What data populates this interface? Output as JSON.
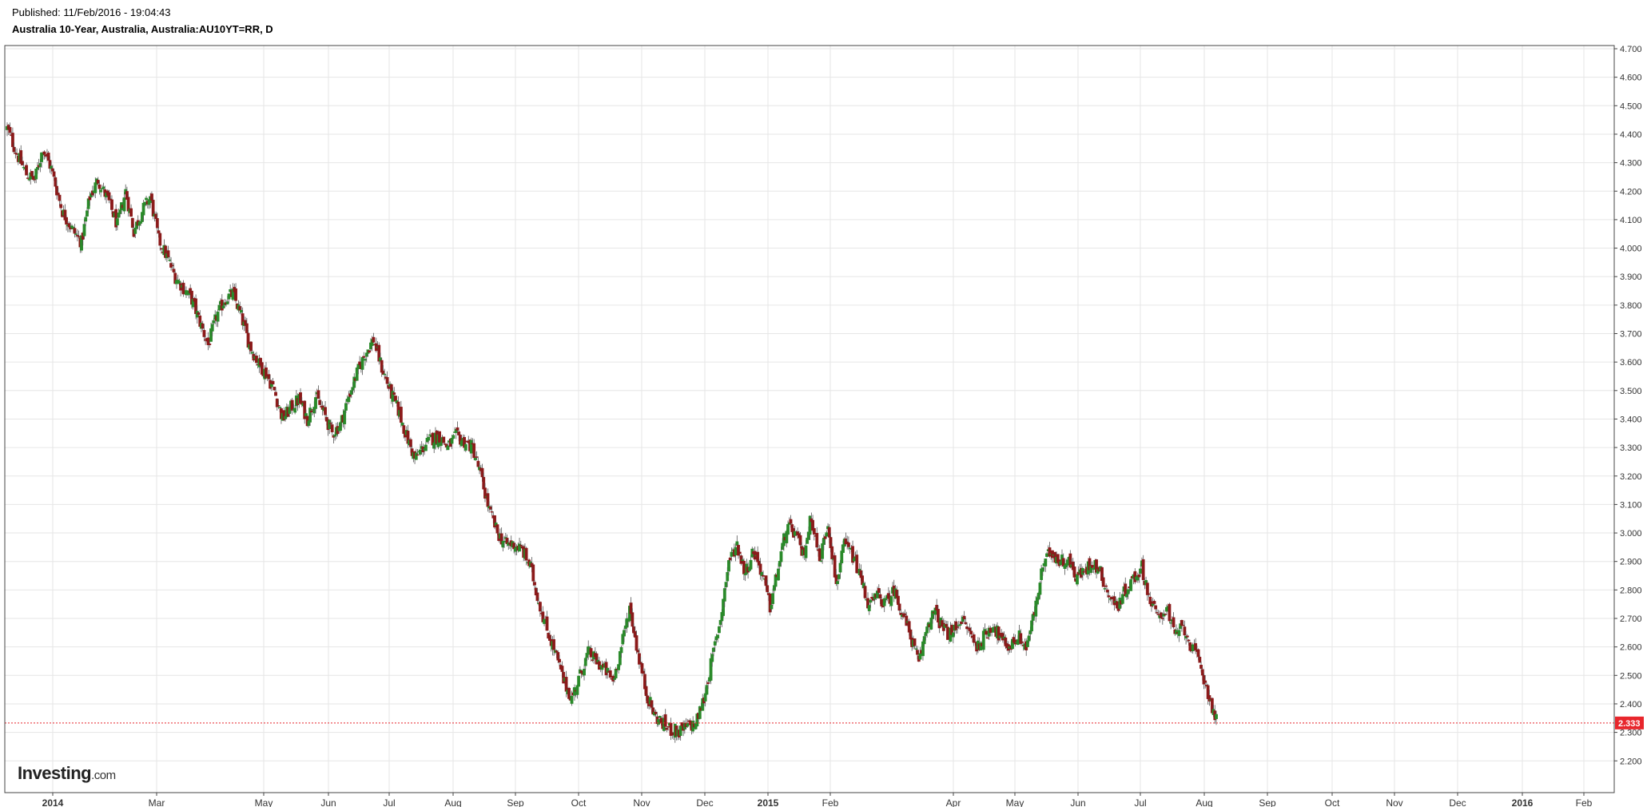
{
  "header": {
    "published": "Published: 11/Feb/2016 - 19:04:43",
    "title": "Australia 10-Year, Australia, Australia:AU10YT=RR, D"
  },
  "brand": {
    "name": "Investing",
    "suffix": ".com"
  },
  "colors": {
    "up": "#2a8a2a",
    "down": "#8b1a1a",
    "grid": "#e6e6e6",
    "last_price_line": "#e8262c",
    "last_price_bg": "#e8262c"
  },
  "chart_data": {
    "type": "candlestick",
    "title": "Australia 10-Year, Australia, Australia:AU10YT=RR, D",
    "ylim": [
      2.15,
      4.7
    ],
    "y_ticks": [
      "4.700",
      "4.600",
      "4.500",
      "4.400",
      "4.300",
      "4.200",
      "4.100",
      "4.000",
      "3.900",
      "3.800",
      "3.700",
      "3.600",
      "3.500",
      "3.400",
      "3.300",
      "3.200",
      "3.100",
      "3.000",
      "2.900",
      "2.800",
      "2.700",
      "2.600",
      "2.500",
      "2.400",
      "2.300",
      "2.200"
    ],
    "x_ticks": [
      {
        "label": "2014",
        "bold": true
      },
      {
        "label": "Mar",
        "bold": false
      },
      {
        "label": "May",
        "bold": false
      },
      {
        "label": "Jun",
        "bold": false
      },
      {
        "label": "Jul",
        "bold": false
      },
      {
        "label": "Aug",
        "bold": false
      },
      {
        "label": "Sep",
        "bold": false
      },
      {
        "label": "Oct",
        "bold": false
      },
      {
        "label": "Nov",
        "bold": false
      },
      {
        "label": "Dec",
        "bold": false
      },
      {
        "label": "2015",
        "bold": true
      },
      {
        "label": "Feb",
        "bold": false
      },
      {
        "label": "Apr",
        "bold": false
      },
      {
        "label": "May",
        "bold": false
      },
      {
        "label": "Jun",
        "bold": false
      },
      {
        "label": "Jul",
        "bold": false
      },
      {
        "label": "Aug",
        "bold": false
      },
      {
        "label": "Sep",
        "bold": false
      },
      {
        "label": "Oct",
        "bold": false
      },
      {
        "label": "Nov",
        "bold": false
      },
      {
        "label": "Dec",
        "bold": false
      },
      {
        "label": "2016",
        "bold": true
      },
      {
        "label": "Feb",
        "bold": false
      }
    ],
    "grid": true,
    "last_price": "2.333",
    "anchors": [
      [
        0,
        4.42
      ],
      [
        8,
        4.32
      ],
      [
        14,
        4.26
      ],
      [
        20,
        4.24
      ],
      [
        26,
        4.35
      ],
      [
        32,
        4.28
      ],
      [
        40,
        4.13
      ],
      [
        48,
        4.06
      ],
      [
        54,
        4.02
      ],
      [
        60,
        4.18
      ],
      [
        66,
        4.24
      ],
      [
        74,
        4.16
      ],
      [
        80,
        4.08
      ],
      [
        86,
        4.2
      ],
      [
        92,
        4.06
      ],
      [
        98,
        4.13
      ],
      [
        104,
        4.18
      ],
      [
        110,
        4.03
      ],
      [
        116,
        3.97
      ],
      [
        122,
        3.9
      ],
      [
        128,
        3.86
      ],
      [
        134,
        3.82
      ],
      [
        140,
        3.74
      ],
      [
        146,
        3.66
      ],
      [
        152,
        3.76
      ],
      [
        158,
        3.82
      ],
      [
        164,
        3.84
      ],
      [
        170,
        3.76
      ],
      [
        176,
        3.66
      ],
      [
        182,
        3.6
      ],
      [
        188,
        3.56
      ],
      [
        194,
        3.5
      ],
      [
        200,
        3.4
      ],
      [
        206,
        3.44
      ],
      [
        212,
        3.47
      ],
      [
        218,
        3.4
      ],
      [
        224,
        3.48
      ],
      [
        230,
        3.42
      ],
      [
        236,
        3.35
      ],
      [
        242,
        3.38
      ],
      [
        248,
        3.48
      ],
      [
        254,
        3.56
      ],
      [
        260,
        3.63
      ],
      [
        266,
        3.68
      ],
      [
        272,
        3.58
      ],
      [
        278,
        3.5
      ],
      [
        284,
        3.43
      ],
      [
        290,
        3.34
      ],
      [
        296,
        3.26
      ],
      [
        302,
        3.3
      ],
      [
        308,
        3.33
      ],
      [
        314,
        3.34
      ],
      [
        320,
        3.3
      ],
      [
        326,
        3.34
      ],
      [
        332,
        3.32
      ],
      [
        338,
        3.3
      ],
      [
        344,
        3.2
      ],
      [
        350,
        3.08
      ],
      [
        356,
        3.0
      ],
      [
        362,
        2.96
      ],
      [
        368,
        2.96
      ],
      [
        374,
        2.94
      ],
      [
        380,
        2.88
      ],
      [
        386,
        2.76
      ],
      [
        392,
        2.66
      ],
      [
        398,
        2.58
      ],
      [
        404,
        2.48
      ],
      [
        410,
        2.42
      ],
      [
        416,
        2.5
      ],
      [
        422,
        2.58
      ],
      [
        428,
        2.55
      ],
      [
        434,
        2.52
      ],
      [
        440,
        2.48
      ],
      [
        446,
        2.6
      ],
      [
        452,
        2.74
      ],
      [
        458,
        2.58
      ],
      [
        464,
        2.44
      ],
      [
        470,
        2.36
      ],
      [
        476,
        2.33
      ],
      [
        482,
        2.31
      ],
      [
        488,
        2.3
      ],
      [
        494,
        2.32
      ],
      [
        500,
        2.33
      ],
      [
        506,
        2.42
      ],
      [
        512,
        2.56
      ],
      [
        518,
        2.7
      ],
      [
        524,
        2.9
      ],
      [
        530,
        2.96
      ],
      [
        536,
        2.86
      ],
      [
        542,
        2.94
      ],
      [
        548,
        2.86
      ],
      [
        554,
        2.74
      ],
      [
        560,
        2.88
      ],
      [
        566,
        3.02
      ],
      [
        572,
        3.0
      ],
      [
        578,
        2.92
      ],
      [
        584,
        3.06
      ],
      [
        590,
        2.9
      ],
      [
        596,
        3.04
      ],
      [
        602,
        2.82
      ],
      [
        608,
        2.96
      ],
      [
        614,
        2.92
      ],
      [
        620,
        2.84
      ],
      [
        626,
        2.74
      ],
      [
        632,
        2.78
      ],
      [
        638,
        2.75
      ],
      [
        644,
        2.8
      ],
      [
        650,
        2.72
      ],
      [
        656,
        2.64
      ],
      [
        662,
        2.54
      ],
      [
        668,
        2.68
      ],
      [
        674,
        2.72
      ],
      [
        680,
        2.66
      ],
      [
        686,
        2.64
      ],
      [
        692,
        2.7
      ],
      [
        698,
        2.66
      ],
      [
        704,
        2.6
      ],
      [
        710,
        2.64
      ],
      [
        716,
        2.68
      ],
      [
        722,
        2.62
      ],
      [
        728,
        2.6
      ],
      [
        734,
        2.64
      ],
      [
        740,
        2.6
      ],
      [
        746,
        2.72
      ],
      [
        752,
        2.88
      ],
      [
        758,
        2.94
      ],
      [
        764,
        2.9
      ],
      [
        770,
        2.91
      ],
      [
        776,
        2.85
      ],
      [
        782,
        2.86
      ],
      [
        788,
        2.9
      ],
      [
        794,
        2.86
      ],
      [
        800,
        2.78
      ],
      [
        806,
        2.74
      ],
      [
        812,
        2.8
      ],
      [
        818,
        2.84
      ],
      [
        824,
        2.88
      ],
      [
        830,
        2.76
      ],
      [
        836,
        2.7
      ],
      [
        842,
        2.74
      ],
      [
        848,
        2.64
      ],
      [
        854,
        2.67
      ],
      [
        860,
        2.6
      ],
      [
        866,
        2.54
      ],
      [
        872,
        2.44
      ],
      [
        878,
        2.34
      ]
    ]
  }
}
